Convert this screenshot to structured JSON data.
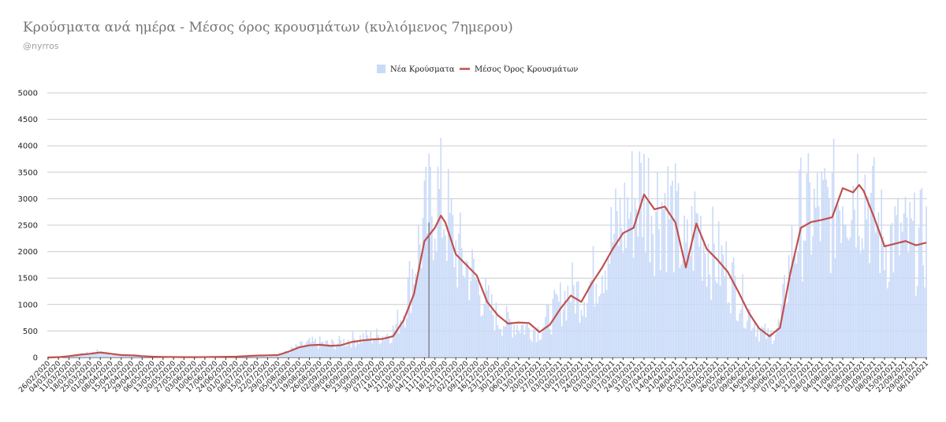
{
  "title": "Κρούσματα ανά ημέρα - Μέσος όρος κρουσμάτων (κυλιόμενος 7ημερου)",
  "subtitle": "@nyrros",
  "chart_data": {
    "type": "bar+line",
    "title": "Κρούσματα ανά ημέρα - Μέσος όρος κρουσμάτων (κυλιόμενος 7ημερου)",
    "start_date": "26/02/2020",
    "end_date": "06/10/2021",
    "ylim": [
      0,
      5000
    ],
    "y_ticks": [
      0,
      500,
      1000,
      1500,
      2000,
      2500,
      3000,
      3500,
      4000,
      4500,
      5000
    ],
    "x_tick_labels": [
      "26/02/2020",
      "04/03/2020",
      "11/03/2020",
      "18/03/2020",
      "25/03/2020",
      "01/04/2020",
      "08/04/2020",
      "15/04/2020",
      "22/04/2020",
      "29/04/2020",
      "06/05/2020",
      "13/05/2020",
      "20/05/2020",
      "27/05/2020",
      "03/06/2020",
      "10/06/2020",
      "17/06/2020",
      "24/06/2020",
      "01/07/2020",
      "08/07/2020",
      "15/07/2020",
      "22/07/2020",
      "29/07/2020",
      "05/08/2020",
      "12/08/2020",
      "19/08/2020",
      "26/08/2020",
      "02/09/2020",
      "09/09/2020",
      "16/09/2020",
      "23/09/2020",
      "30/09/2020",
      "07/10/2020",
      "14/10/2020",
      "21/10/2020",
      "28/10/2020",
      "04/11/2020",
      "11/11/2020",
      "18/11/2020",
      "25/11/2020",
      "02/12/2020",
      "09/12/2020",
      "16/12/2020",
      "23/12/2020",
      "30/12/2020",
      "06/01/2021",
      "13/01/2021",
      "20/01/2021",
      "27/01/2021",
      "03/02/2021",
      "10/02/2021",
      "17/02/2021",
      "24/02/2021",
      "03/03/2021",
      "10/03/2021",
      "17/03/2021",
      "24/03/2021",
      "31/03/2021",
      "07/04/2021",
      "14/04/2021",
      "21/04/2021",
      "28/04/2021",
      "05/05/2021",
      "12/05/2021",
      "19/05/2021",
      "26/05/2021",
      "02/06/2021",
      "09/06/2021",
      "16/06/2021",
      "23/06/2021",
      "30/06/2021",
      "07/07/2021",
      "14/07/2021",
      "21/07/2021",
      "28/07/2021",
      "04/08/2021",
      "11/08/2021",
      "18/08/2021",
      "25/08/2021",
      "01/09/2021",
      "08/09/2021",
      "15/09/2021",
      "22/09/2021",
      "29/09/2021",
      "06/10/2021"
    ],
    "legend": {
      "position": "top",
      "entries": [
        {
          "label": "Νέα Κρούσματα",
          "color": "#c9daf8"
        },
        {
          "label": "Μέσος Όρος Κρουσμάτων",
          "color": "#c0504d"
        }
      ]
    },
    "grid": true,
    "series": [
      {
        "name": "Νέα Κρούσματα",
        "type": "bar",
        "color": "#c9daf8",
        "points": [
          [
            "26/02/2020",
            1
          ],
          [
            "11/03/2020",
            20
          ],
          [
            "25/03/2020",
            80
          ],
          [
            "01/04/2020",
            110
          ],
          [
            "08/04/2020",
            60
          ],
          [
            "15/04/2020",
            30
          ],
          [
            "22/04/2020",
            70
          ],
          [
            "29/04/2020",
            20
          ],
          [
            "06/05/2020",
            15
          ],
          [
            "03/06/2020",
            8
          ],
          [
            "24/06/2020",
            12
          ],
          [
            "15/07/2020",
            25
          ],
          [
            "29/07/2020",
            35
          ],
          [
            "05/08/2020",
            120
          ],
          [
            "12/08/2020",
            200
          ],
          [
            "19/08/2020",
            260
          ],
          [
            "26/08/2020",
            270
          ],
          [
            "02/09/2020",
            240
          ],
          [
            "09/09/2020",
            280
          ],
          [
            "16/09/2020",
            330
          ],
          [
            "23/09/2020",
            360
          ],
          [
            "30/09/2020",
            380
          ],
          [
            "07/10/2020",
            400
          ],
          [
            "14/10/2020",
            480
          ],
          [
            "21/10/2020",
            860
          ],
          [
            "28/10/2020",
            1700
          ],
          [
            "04/11/2020",
            2400
          ],
          [
            "11/11/2020",
            3000
          ],
          [
            "18/11/2020",
            2700
          ],
          [
            "25/11/2020",
            2000
          ],
          [
            "02/12/2020",
            1700
          ],
          [
            "09/12/2020",
            1400
          ],
          [
            "16/12/2020",
            1000
          ],
          [
            "23/12/2020",
            700
          ],
          [
            "30/12/2020",
            650
          ],
          [
            "06/01/2021",
            600
          ],
          [
            "13/01/2021",
            550
          ],
          [
            "20/01/2021",
            500
          ],
          [
            "27/01/2021",
            750
          ],
          [
            "03/02/2021",
            1000
          ],
          [
            "10/02/2021",
            1250
          ],
          [
            "17/02/2021",
            1150
          ],
          [
            "24/02/2021",
            1400
          ],
          [
            "03/03/2021",
            1800
          ],
          [
            "10/03/2021",
            2200
          ],
          [
            "17/03/2021",
            2500
          ],
          [
            "24/03/2021",
            2900
          ],
          [
            "31/03/2021",
            3100
          ],
          [
            "07/04/2021",
            2800
          ],
          [
            "14/04/2021",
            2900
          ],
          [
            "21/04/2021",
            2500
          ],
          [
            "28/04/2021",
            1800
          ],
          [
            "05/05/2021",
            2500
          ],
          [
            "12/05/2021",
            2100
          ],
          [
            "19/05/2021",
            1800
          ],
          [
            "26/05/2021",
            1600
          ],
          [
            "02/06/2021",
            1200
          ],
          [
            "09/06/2021",
            850
          ],
          [
            "16/06/2021",
            520
          ],
          [
            "23/06/2021",
            380
          ],
          [
            "30/06/2021",
            600
          ],
          [
            "07/07/2021",
            1800
          ],
          [
            "14/07/2021",
            2600
          ],
          [
            "21/07/2021",
            2600
          ],
          [
            "28/07/2021",
            2650
          ],
          [
            "04/08/2021",
            2700
          ],
          [
            "11/08/2021",
            3200
          ],
          [
            "18/08/2021",
            3200
          ],
          [
            "25/08/2021",
            3200
          ],
          [
            "01/09/2021",
            2600
          ],
          [
            "08/09/2021",
            2100
          ],
          [
            "15/09/2021",
            2200
          ],
          [
            "22/09/2021",
            2150
          ],
          [
            "29/09/2021",
            2100
          ],
          [
            "06/10/2021",
            2200
          ]
        ]
      },
      {
        "name": "Μέσος Όρος Κρουσμάτων",
        "type": "line",
        "color": "#c0504d",
        "points": [
          [
            "26/02/2020",
            0
          ],
          [
            "04/03/2020",
            5
          ],
          [
            "11/03/2020",
            25
          ],
          [
            "18/03/2020",
            50
          ],
          [
            "25/03/2020",
            70
          ],
          [
            "01/04/2020",
            95
          ],
          [
            "08/04/2020",
            70
          ],
          [
            "15/04/2020",
            45
          ],
          [
            "22/04/2020",
            40
          ],
          [
            "29/04/2020",
            25
          ],
          [
            "06/05/2020",
            15
          ],
          [
            "13/05/2020",
            10
          ],
          [
            "27/05/2020",
            5
          ],
          [
            "03/06/2020",
            5
          ],
          [
            "17/06/2020",
            10
          ],
          [
            "01/07/2020",
            15
          ],
          [
            "15/07/2020",
            35
          ],
          [
            "22/07/2020",
            40
          ],
          [
            "29/07/2020",
            45
          ],
          [
            "05/08/2020",
            110
          ],
          [
            "12/08/2020",
            190
          ],
          [
            "19/08/2020",
            230
          ],
          [
            "26/08/2020",
            240
          ],
          [
            "02/09/2020",
            220
          ],
          [
            "09/09/2020",
            230
          ],
          [
            "16/09/2020",
            290
          ],
          [
            "23/09/2020",
            320
          ],
          [
            "30/09/2020",
            340
          ],
          [
            "07/10/2020",
            350
          ],
          [
            "14/10/2020",
            400
          ],
          [
            "21/10/2020",
            700
          ],
          [
            "28/10/2020",
            1200
          ],
          [
            "04/11/2020",
            2200
          ],
          [
            "11/11/2020",
            2450
          ],
          [
            "15/11/2020",
            2680
          ],
          [
            "18/11/2020",
            2550
          ],
          [
            "25/11/2020",
            1950
          ],
          [
            "02/12/2020",
            1750
          ],
          [
            "09/12/2020",
            1550
          ],
          [
            "16/12/2020",
            1050
          ],
          [
            "23/12/2020",
            800
          ],
          [
            "30/12/2020",
            640
          ],
          [
            "06/01/2021",
            660
          ],
          [
            "13/01/2021",
            650
          ],
          [
            "20/01/2021",
            480
          ],
          [
            "27/01/2021",
            620
          ],
          [
            "03/02/2021",
            920
          ],
          [
            "10/02/2021",
            1170
          ],
          [
            "17/02/2021",
            1050
          ],
          [
            "24/02/2021",
            1400
          ],
          [
            "03/03/2021",
            1700
          ],
          [
            "10/03/2021",
            2050
          ],
          [
            "17/03/2021",
            2350
          ],
          [
            "24/03/2021",
            2450
          ],
          [
            "31/03/2021",
            3080
          ],
          [
            "07/04/2021",
            2800
          ],
          [
            "14/04/2021",
            2850
          ],
          [
            "21/04/2021",
            2550
          ],
          [
            "28/04/2021",
            1700
          ],
          [
            "05/05/2021",
            2530
          ],
          [
            "12/05/2021",
            2050
          ],
          [
            "19/05/2021",
            1850
          ],
          [
            "26/05/2021",
            1620
          ],
          [
            "02/06/2021",
            1250
          ],
          [
            "09/06/2021",
            850
          ],
          [
            "16/06/2021",
            550
          ],
          [
            "23/06/2021",
            400
          ],
          [
            "30/06/2021",
            560
          ],
          [
            "07/07/2021",
            1600
          ],
          [
            "14/07/2021",
            2450
          ],
          [
            "21/07/2021",
            2560
          ],
          [
            "28/07/2021",
            2600
          ],
          [
            "04/08/2021",
            2650
          ],
          [
            "11/08/2021",
            3200
          ],
          [
            "18/08/2021",
            3120
          ],
          [
            "22/08/2021",
            3260
          ],
          [
            "25/08/2021",
            3150
          ],
          [
            "01/09/2021",
            2650
          ],
          [
            "08/09/2021",
            2100
          ],
          [
            "15/09/2021",
            2150
          ],
          [
            "22/09/2021",
            2200
          ],
          [
            "29/09/2021",
            2120
          ],
          [
            "06/10/2021",
            2170
          ]
        ]
      }
    ]
  }
}
